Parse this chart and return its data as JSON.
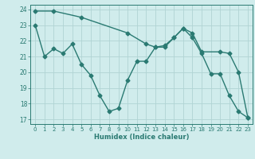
{
  "xlabel": "Humidex (Indice chaleur)",
  "xlim": [
    -0.5,
    23.5
  ],
  "ylim": [
    16.7,
    24.3
  ],
  "xticks": [
    0,
    1,
    2,
    3,
    4,
    5,
    6,
    7,
    8,
    9,
    10,
    11,
    12,
    13,
    14,
    15,
    16,
    17,
    18,
    19,
    20,
    21,
    22,
    23
  ],
  "yticks": [
    17,
    18,
    19,
    20,
    21,
    22,
    23,
    24
  ],
  "background_color": "#d0ecec",
  "grid_color": "#b0d4d4",
  "line_color": "#2a7a72",
  "line1_x": [
    0,
    1,
    2,
    3,
    4,
    5,
    6,
    7,
    8,
    9,
    10,
    11,
    12,
    13,
    14,
    15,
    16,
    17,
    18,
    19,
    20,
    21,
    22,
    23
  ],
  "line1_y": [
    23.0,
    21.0,
    21.5,
    21.2,
    21.8,
    20.5,
    19.8,
    18.5,
    17.5,
    17.7,
    19.5,
    20.7,
    20.7,
    21.6,
    21.6,
    22.2,
    22.8,
    22.2,
    21.2,
    19.9,
    19.9,
    18.5,
    17.5,
    17.1
  ],
  "line2_x": [
    0,
    2,
    5,
    10,
    12,
    13,
    14,
    15,
    16,
    17,
    18,
    20,
    21,
    22,
    23
  ],
  "line2_y": [
    23.9,
    23.9,
    23.5,
    22.5,
    21.8,
    21.6,
    21.7,
    22.2,
    22.8,
    22.5,
    21.3,
    21.3,
    21.2,
    20.0,
    17.1
  ],
  "marker": "D",
  "marker_size": 2.5,
  "linewidth": 1.0,
  "font_color": "#2a7a72",
  "tick_fontsize": 5.0,
  "xlabel_fontsize": 6.0
}
